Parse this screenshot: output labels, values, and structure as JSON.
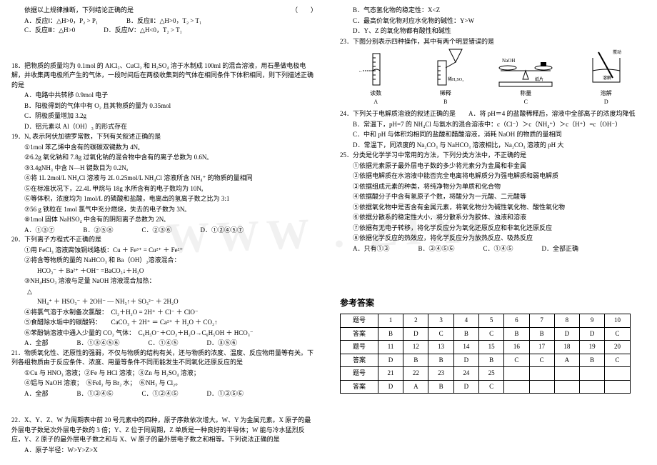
{
  "watermark": "WWW . ZIXI",
  "left": {
    "pre18": {
      "stem": "依据以上规律推断，下列结论正确的是",
      "paren": "（　　）",
      "A": "A．反应Ⅰ：△H>0，P₂ > P₁",
      "B": "B．反应Ⅱ：△H>0，T₂ > T₁",
      "C": "C．反应Ⅲ：△H>0",
      "D": "D．反应Ⅳ：△H<0，T₂ > T₁"
    },
    "q18": {
      "stem": "18．把物质的质量均为 0.1mol 的 AlCl₃、CuCl₂ 和 H₂SO₄ 溶于水制成 100ml 的混合溶液，用石墨做电极电解，并收集两电极所产生的气体，一段时间后在两极收集到的气体在相同条件下体积相同，则下列描述正确的是",
      "A": "A．电路中共转移 0.9mol 电子",
      "B": "B．阳极得到的气体中有 O₂ 且其物质的量为 0.35mol",
      "C": "C．阴极质量增加 3.2g",
      "D": "D．铝元素以 Al（OH）₃ 的形式存在"
    },
    "q19": {
      "stem": "19．Nₐ 表示阿伏加德罗常数，下列有关叙述正确的是",
      "i1": "①1mol 苯乙烯中含有的碳碳双键数为 4Nₐ",
      "i2": "②6.2g 氧化钠和 7.8g 过氧化钠的混合物中含有的离子总数为 0.6Nₐ",
      "i3": "③3.4gNH₃ 中含 N—H 键数目为 0.2Nₐ",
      "i4": "④将 1L 2mol/L NH₄Cl 溶液与 2L 0.25mol/L NH₄Cl 溶液所含 NH₄⁺ 的物质的量相同",
      "i5": "⑤在标准状况下，22.4L 甲烷与 18g 水所含有的电子数均为 10Nₐ",
      "i6": "⑥等体积，浓度均为 1mol/L 的磷酸和盐酸，电离出的氢离子数之比为 3:1",
      "i7": "⑦56 g 铁粒在 1mol 氯气中充分燃烧，失去的电子数为 3Nₐ",
      "i8": "⑧1mol 固体 NaHSO₄ 中含有的阴阳离子总数为 2Nₐ",
      "optA": "A．①③⑦",
      "optB": "B．②⑤⑧",
      "optC": "C．②③⑥",
      "optD": "D．①②④⑤⑦"
    },
    "q20": {
      "stem": "20．下列离子方程式不正确的是",
      "i1": "①用 FeCl₃ 溶液腐蚀铜线路板：Cu ＋ Fe³⁺ = Cu²⁺ ＋ Fe²⁺",
      "i2": "②将含等物质的量的 NaHCO₃ 和 Ba（OH）₂溶液混合：",
      "i2b": "HCO₃⁻ ＋ Ba²⁺ ＋OH⁻ =BaCO₃↓＋H₂O",
      "i3": "③NH₄HSO₃ 溶液与足量 NaOH 溶液混合加热：",
      "i3b": "NH₄⁺ ＋ HSO₃⁻ ＋ 2OH⁻ — NH₃↑＋ SO₃²⁻ ＋ 2H₂O",
      "i4": "④将氯气溶于水制备次氯酸：　Cl₂＋H₂O = 2H⁺ ＋ Cl⁻ ＋ ClO⁻",
      "i5": "⑤食醋除水垢中的碳酸钙：　　CaCO₃ ＋ 2H⁺ ＝ Ca²⁺ ＋ H₂O ＋ CO₂↑",
      "i6": "⑥苯酚钠溶液中通入少量的 CO₂ 气体：　C₆H₅O⁻＋CO₂＋H₂O→C₆H₅OH ＋ HCO₃⁻",
      "optA": "A．全部",
      "optB": "B．①③④⑤⑥",
      "optC": "C．①④⑤",
      "optD": "D．③⑤⑥"
    },
    "q21": {
      "stem": "21．物质氧化性、还原性的强弱，不仅与物质的结构有关，还与物质的浓度、温度、反应物用量等有关。下列各组物质由于反应条件、浓度、用量等条件不同而能发生不同氧化还原反应的是",
      "i1": "①Cu 与 HNO₃ 溶液；②Fe 与 HCl 溶液；③Zn 与 H₂SO₄ 溶液；",
      "i2": "④铝与 NaOH 溶液；　⑤FeI₂ 与 Br₂ 水；　⑥NH₃ 与 Cl₂。",
      "optA": "A．全部",
      "optB": "B．①③④⑥",
      "optC": "C．①②④⑤",
      "optD": "D．①③⑤⑥"
    },
    "q22": {
      "stem": "22．X、Y、Z、W 为周期表中前 20 号元素中的四种，原子序数依次增大。W、Y 为金属元素。X 原子的最外层电子数是次外层电子数的 3 倍；Y、Z 位于同周期，Z 单质是一种良好的半导体；W 能与冷水猛烈反应，Y、Z 原子的最外层电子数之和与 X、W 原子的最外层电子数之和相等。下列说法正确的是",
      "A": "A．原子半径：W>Y>Z>X"
    }
  },
  "right": {
    "q22cont": {
      "B": "B．气态氢化物的稳定性：X<Z",
      "C": "C．最高价氧化物对应水化物的碱性：Y>W",
      "D": "D．Y、Z 的氧化物都有酸性和碱性"
    },
    "q23": {
      "stem": "23．下图分别表示四种操作，其中有两个明显错误的是",
      "labels": {
        "A": "A",
        "B": "B",
        "C": "C",
        "D": "D"
      },
      "captions": {
        "A": "读数",
        "B": "稀释",
        "C": "称量",
        "D": "溶解"
      },
      "text": {
        "naoh": "NaOH",
        "h2so4": "稀H₂SO₄",
        "paper": "纸片",
        "stir": "搅动",
        "cup": "溶解"
      }
    },
    "q24": {
      "stem": "24．下列关于电解质溶液的叙述正确的是　　A．将 pH＝4 的盐酸稀释后，溶液中全部离子的浓度均降低",
      "B": "B．常温下，pH=7 的 NH₄Cl 与氨水的混合溶液中：c（Cl⁻）＞c（NH₄⁺）＞c（H⁺）=c（OH⁻）",
      "C": "C．中和 pH 与体积均相同的盐酸和醋酸溶液，消耗 NaOH 的物质的量相同",
      "D": "D．常温下，同浓度的 Na₂CO₃ 与 NaHCO₃ 溶液相比，Na₂CO₃ 溶液的 pH 大"
    },
    "q25": {
      "stem": "25．分类是化学学习中常用的方法，下列分类方法中，不正确的是",
      "i1": "①依据元素原子最外层电子数的多少将元素分为金属和非金属",
      "i2": "②依据电解质在水溶液中能否完全电离将电解质分为强电解质和弱电解质",
      "i3": "③依据组成元素的种类，将纯净物分为单质和化合物",
      "i4": "④依据酸分子中含有氢原子个数，将酸分为一元酸、二元酸等",
      "i5": "⑤依据氧化物中是否含有金属元素，将氧化物分为碱性氧化物、酸性氧化物",
      "i6": "⑥依据分散系的稳定性大小，将分散系分为胶体、浊液和溶液",
      "i7": "⑦依据有无电子转移，将化学反应分为氧化还原反应和非氧化还原反应",
      "i8": "⑧依据化学反应的热效应，将化学反应分为放热反应、吸热反应",
      "optA": "A．只有①③",
      "optB": "B．③④⑤⑥",
      "optC": "C．①④⑤",
      "optD": "D．全部正确"
    },
    "answers": {
      "title": "参考答案",
      "rows": [
        [
          "题号",
          "1",
          "2",
          "3",
          "4",
          "5",
          "6",
          "7",
          "8",
          "9",
          "10"
        ],
        [
          "答案",
          "B",
          "D",
          "C",
          "B",
          "C",
          "B",
          "B",
          "D",
          "D",
          "C"
        ],
        [
          "题号",
          "11",
          "12",
          "13",
          "14",
          "15",
          "16",
          "17",
          "18",
          "19",
          "20"
        ],
        [
          "答案",
          "D",
          "B",
          "B",
          "D",
          "B",
          "C",
          "C",
          "A",
          "B",
          "C"
        ],
        [
          "题号",
          "21",
          "22",
          "23",
          "24",
          "25",
          "",
          "",
          "",
          "",
          ""
        ],
        [
          "答案",
          "D",
          "A",
          "B",
          "D",
          "C",
          "",
          "",
          "",
          "",
          ""
        ]
      ]
    }
  },
  "delta_sym": "△"
}
